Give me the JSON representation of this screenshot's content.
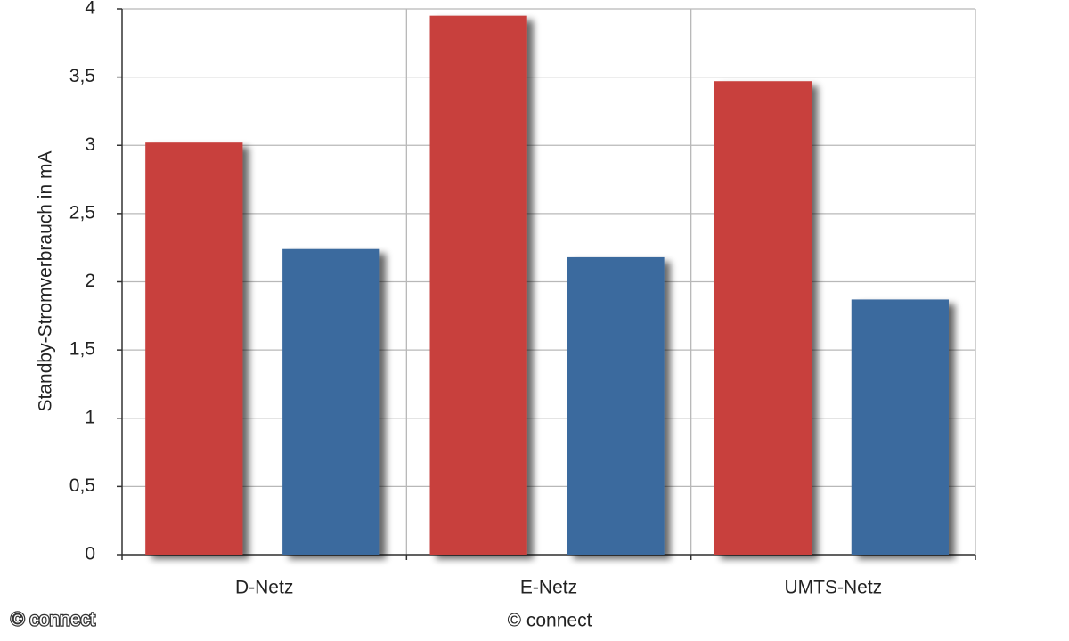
{
  "chart_data": {
    "type": "bar",
    "y_label": "Standby-Stromverbrauch in mA",
    "source": "© connect",
    "watermark": "© connect",
    "categories": [
      "D-Netz",
      "E-Netz",
      "UMTS-Netz"
    ],
    "series": [
      {
        "color": "#c8403c",
        "values": [
          3.02,
          3.95,
          3.47
        ]
      },
      {
        "color": "#3b6a9e",
        "values": [
          2.24,
          2.18,
          1.87
        ]
      }
    ],
    "ylim": [
      0,
      4
    ],
    "yticks": [
      0,
      {
        "value": 0.5,
        "label": "0,5"
      },
      1,
      {
        "value": 1.5,
        "label": "1,5"
      },
      2,
      {
        "value": 2.5,
        "label": "2,5"
      },
      3,
      {
        "value": 3.5,
        "label": "3,5"
      },
      4
    ],
    "grid": true
  }
}
